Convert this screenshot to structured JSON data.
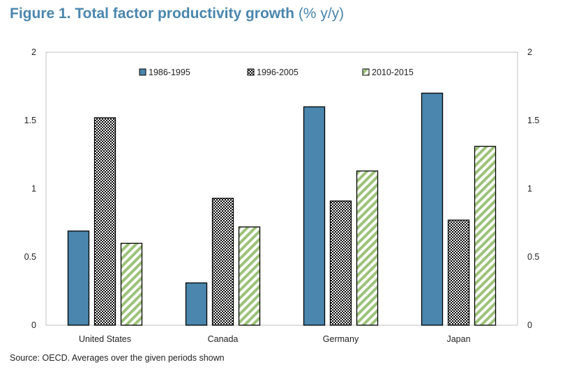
{
  "header": {
    "title": "Figure 1. Total factor productivity growth",
    "unit": "(% y/y)"
  },
  "footer": {
    "source": "Source: OECD. Averages over the given periods shown"
  },
  "chart_data": {
    "type": "bar",
    "title": "Figure 1. Total factor productivity growth (% y/y)",
    "categories": [
      "United States",
      "Canada",
      "Germany",
      "Japan"
    ],
    "series": [
      {
        "name": "1986-1995",
        "values": [
          0.69,
          0.31,
          1.6,
          1.7
        ],
        "color": "#4a86ad",
        "pattern": "solid"
      },
      {
        "name": "1996-2005",
        "values": [
          1.52,
          0.93,
          0.91,
          0.77
        ],
        "color": "#000000",
        "pattern": "checker"
      },
      {
        "name": "2010-2015",
        "values": [
          0.6,
          0.72,
          1.13,
          1.31
        ],
        "color": "#9cc27a",
        "pattern": "diagonal"
      }
    ],
    "ylim": [
      0,
      2
    ],
    "yticks": [
      "0",
      "0.5",
      "1",
      "1.5",
      "2"
    ],
    "secondary_axis": true,
    "legend": "top",
    "grid": false
  }
}
